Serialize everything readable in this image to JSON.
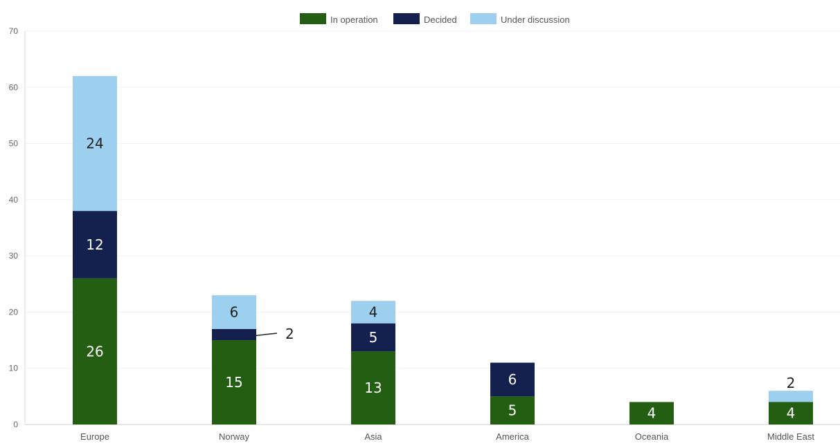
{
  "chart_data": {
    "type": "bar",
    "stacked": true,
    "title": "",
    "xlabel": "",
    "ylabel": "",
    "categories": [
      "Europe",
      "Norway",
      "Asia",
      "America",
      "Oceania",
      "Middle East"
    ],
    "series": [
      {
        "name": "In operation",
        "color": "#235E12",
        "label_color": "#ffffff",
        "values": [
          26,
          15,
          13,
          5,
          4,
          4
        ]
      },
      {
        "name": "Decided",
        "color": "#14214E",
        "label_color": "#ffffff",
        "values": [
          12,
          2,
          5,
          6,
          0,
          0
        ]
      },
      {
        "name": "Under discussion",
        "color": "#9DCFEE",
        "label_color": "#1f1f1f",
        "values": [
          24,
          6,
          4,
          0,
          0,
          2
        ]
      }
    ],
    "ylim": [
      0,
      70
    ],
    "yticks": [
      0,
      10,
      20,
      30,
      40,
      50,
      60,
      70
    ],
    "grid": true,
    "legend": "top-center",
    "leader_label": {
      "category": "Norway",
      "series": "Decided",
      "text": "2"
    },
    "outside_label": {
      "category": "Middle East",
      "series": "Under discussion",
      "text": "2"
    }
  }
}
